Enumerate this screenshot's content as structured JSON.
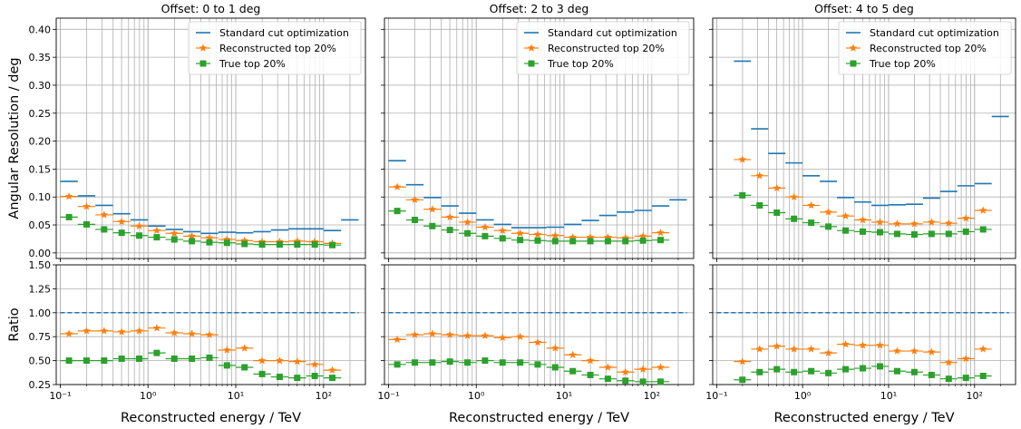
{
  "chart_data": {
    "type": "scatter",
    "layout": "3 columns x 2 rows (top: angular resolution, bottom: ratio), shared x axes",
    "xscale": "log",
    "xlim": [
      0.09,
      300
    ],
    "xlabel": "Reconstructed energy / TeV",
    "x_tick_labels": [
      "10⁻¹",
      "10⁰",
      "10¹",
      "10²"
    ],
    "grid": true,
    "bin_edges": [
      0.1,
      0.1585,
      0.2512,
      0.3981,
      0.631,
      1.0,
      1.585,
      2.512,
      3.981,
      6.31,
      10.0,
      15.85,
      25.12,
      39.81,
      63.1,
      100.0,
      158.5,
      251.2
    ],
    "top": {
      "ylabel": "Angular Resolution / deg",
      "ylim": [
        -0.01,
        0.42
      ],
      "ytick_labels": [
        "0.00",
        "0.05",
        "0.10",
        "0.15",
        "0.20",
        "0.25",
        "0.30",
        "0.35",
        "0.40"
      ]
    },
    "bottom": {
      "ylabel": "Ratio",
      "ylim": [
        0.25,
        1.5
      ],
      "ytick_labels": [
        "0.25",
        "0.50",
        "0.75",
        "1.00",
        "1.25",
        "1.50"
      ],
      "reference_line": 1.0
    },
    "legend": {
      "placement": "top-right",
      "entries": [
        {
          "label": "Standard cut optimization",
          "marker": "horizontal bar",
          "color": "#1f77b4"
        },
        {
          "label": "Reconstructed top 20%",
          "marker": "star",
          "color": "#ff7f0e"
        },
        {
          "label": "True top 20%",
          "marker": "square",
          "color": "#2ca02c"
        }
      ]
    },
    "panels": [
      {
        "title": "Offset: 0 to 1 deg",
        "standard": [
          0.128,
          0.102,
          0.085,
          0.07,
          0.059,
          0.048,
          0.042,
          0.038,
          0.035,
          0.037,
          0.036,
          0.038,
          0.041,
          0.043,
          0.043,
          0.04,
          0.059
        ],
        "reco": [
          0.101,
          0.083,
          0.068,
          0.056,
          0.048,
          0.04,
          0.035,
          0.03,
          0.027,
          0.024,
          0.022,
          0.02,
          0.02,
          0.021,
          0.02,
          0.017,
          null
        ],
        "true": [
          0.064,
          0.051,
          0.042,
          0.036,
          0.031,
          0.028,
          0.024,
          0.021,
          0.019,
          0.018,
          0.016,
          0.015,
          0.015,
          0.015,
          0.015,
          0.014,
          null
        ],
        "ratio_reco": [
          0.78,
          0.81,
          0.81,
          0.8,
          0.81,
          0.84,
          0.79,
          0.78,
          0.77,
          0.61,
          0.63,
          0.5,
          0.5,
          0.49,
          0.46,
          0.4,
          null
        ],
        "ratio_true": [
          0.5,
          0.5,
          0.5,
          0.52,
          0.52,
          0.58,
          0.52,
          0.52,
          0.53,
          0.45,
          0.43,
          0.36,
          0.33,
          0.32,
          0.34,
          0.32,
          null
        ]
      },
      {
        "title": "Offset: 2 to 3 deg",
        "standard": [
          0.165,
          0.122,
          0.099,
          0.084,
          0.071,
          0.059,
          0.051,
          0.045,
          0.045,
          0.046,
          0.051,
          0.058,
          0.067,
          0.073,
          0.076,
          0.084,
          0.095
        ],
        "reco": [
          0.118,
          0.095,
          0.078,
          0.064,
          0.055,
          0.046,
          0.04,
          0.035,
          0.033,
          0.031,
          0.028,
          0.028,
          0.028,
          0.027,
          0.03,
          0.036,
          null
        ],
        "true": [
          0.075,
          0.059,
          0.048,
          0.041,
          0.035,
          0.03,
          0.026,
          0.023,
          0.022,
          0.021,
          0.021,
          0.021,
          0.021,
          0.021,
          0.022,
          0.023,
          null
        ],
        "ratio_reco": [
          0.72,
          0.77,
          0.78,
          0.77,
          0.76,
          0.76,
          0.74,
          0.75,
          0.69,
          0.63,
          0.56,
          0.5,
          0.43,
          0.38,
          0.41,
          0.43,
          null
        ],
        "ratio_true": [
          0.46,
          0.48,
          0.48,
          0.49,
          0.48,
          0.5,
          0.48,
          0.48,
          0.46,
          0.43,
          0.39,
          0.35,
          0.31,
          0.29,
          0.28,
          0.28,
          null
        ]
      },
      {
        "title": "Offset: 4 to 5 deg",
        "standard": [
          null,
          0.343,
          0.222,
          0.178,
          0.161,
          0.138,
          0.128,
          0.099,
          0.091,
          0.085,
          0.086,
          0.087,
          0.098,
          0.11,
          0.12,
          0.124,
          0.244
        ],
        "reco": [
          null,
          0.167,
          0.138,
          0.116,
          0.1,
          0.085,
          0.073,
          0.066,
          0.059,
          0.055,
          0.052,
          0.052,
          0.055,
          0.053,
          0.062,
          0.076,
          null
        ],
        "true": [
          null,
          0.103,
          0.085,
          0.072,
          0.061,
          0.054,
          0.047,
          0.04,
          0.038,
          0.037,
          0.034,
          0.033,
          0.034,
          0.034,
          0.038,
          0.042,
          null
        ],
        "ratio_reco": [
          null,
          0.49,
          0.62,
          0.65,
          0.62,
          0.62,
          0.58,
          0.67,
          0.66,
          0.66,
          0.6,
          0.6,
          0.59,
          0.48,
          0.52,
          0.62,
          null
        ],
        "ratio_true": [
          null,
          0.3,
          0.38,
          0.41,
          0.38,
          0.39,
          0.37,
          0.41,
          0.42,
          0.44,
          0.39,
          0.38,
          0.35,
          0.31,
          0.32,
          0.34,
          null
        ]
      }
    ]
  }
}
